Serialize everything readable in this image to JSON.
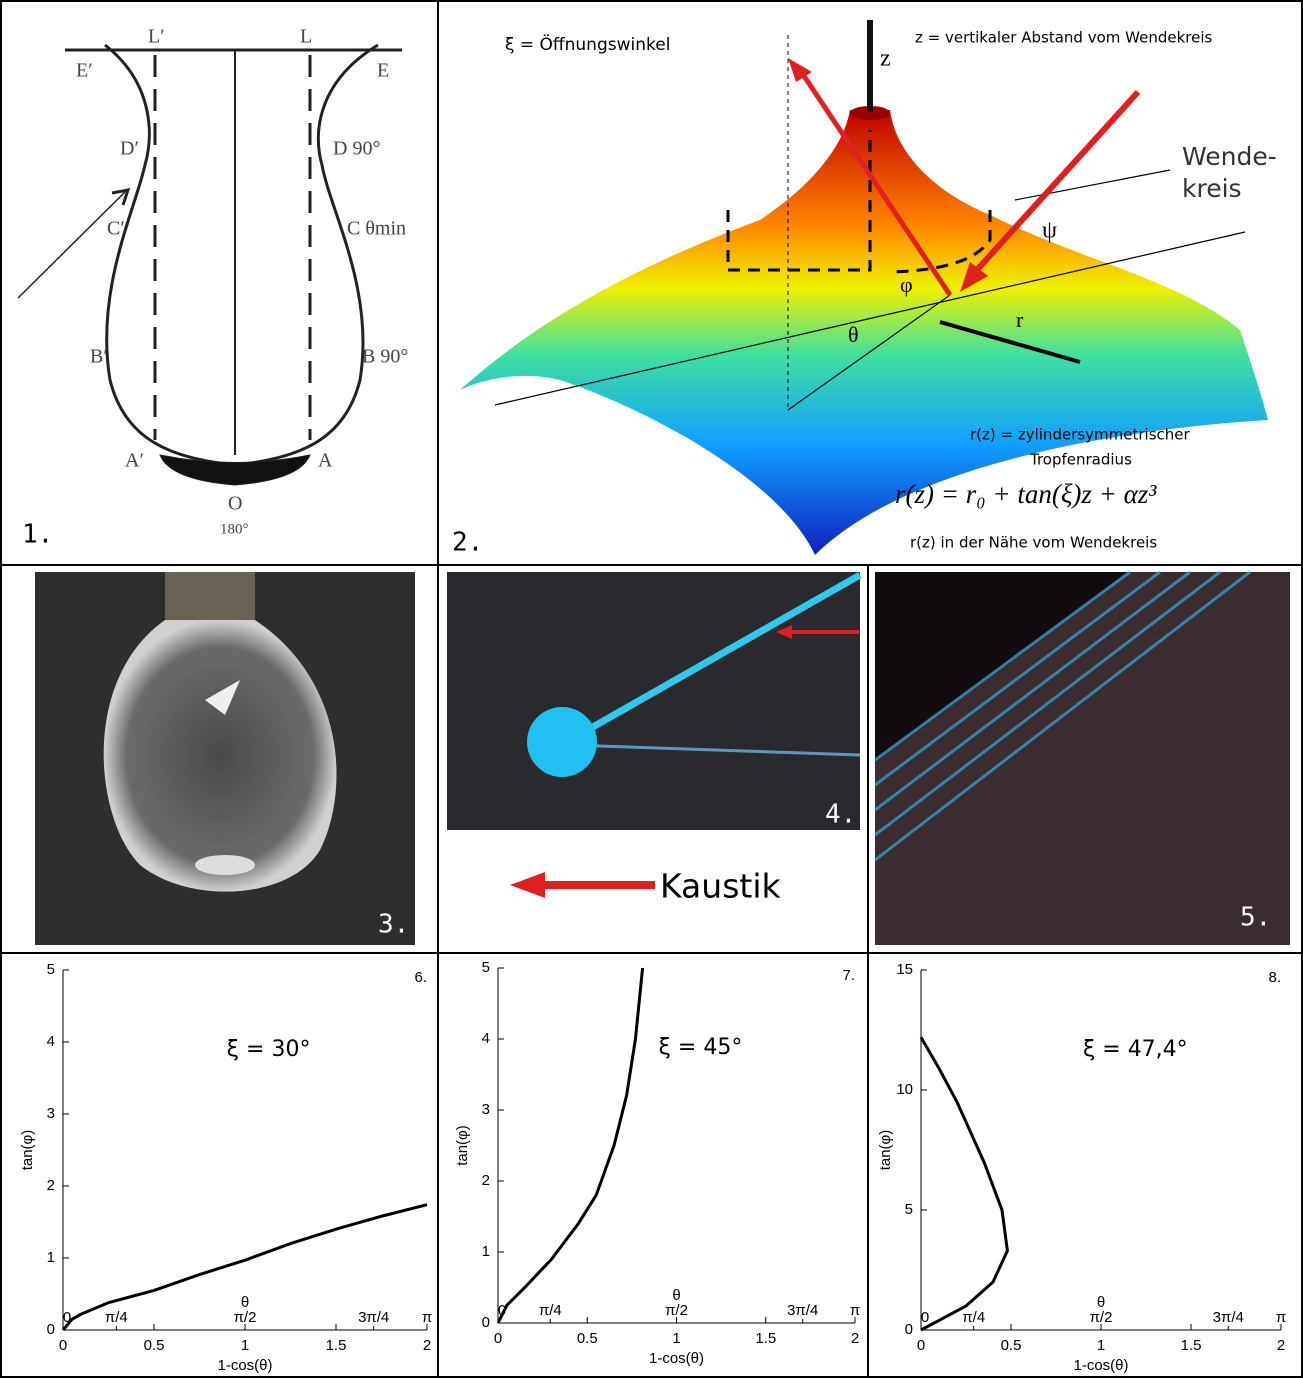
{
  "panels": {
    "p1": {
      "number": "1.",
      "labels": [
        "L′",
        "L",
        "E′",
        "E",
        "D′",
        "D 90°",
        "C′",
        "C θmin",
        "B′",
        "B 90°",
        "A′",
        "A",
        "O",
        "180°"
      ]
    },
    "p2": {
      "number": "2.",
      "xi_def": "ξ = Öffnungswinkel",
      "z_def": "z = vertikaler Abstand vom Wendekreis",
      "z": "z",
      "wende": "Wende-",
      "kreis": "kreis",
      "psi": "ψ",
      "phi": "φ",
      "theta": "θ",
      "r": "r",
      "rz_def": "r(z) = zylindersymmetrischer",
      "rz_def2": "Tropfenradius",
      "formula": "r(z) = r₀ + tan(ξ)z + αz³",
      "note": "r(z) in der Nähe vom Wendekreis"
    },
    "p3": {
      "number": "3."
    },
    "p4": {
      "number": "4.",
      "caption": "Kaustik"
    },
    "p5": {
      "number": "5."
    }
  },
  "chart_data": [
    {
      "type": "line",
      "title": "6.",
      "annotation": "ξ = 30°",
      "x_label": "1-cos(θ)",
      "y_label": "tan(φ)",
      "x2_label": "θ",
      "color": "#000000",
      "x": [
        0,
        0.05,
        0.1,
        0.25,
        0.5,
        0.75,
        1,
        1.25,
        1.5,
        1.75,
        2
      ],
      "values": [
        0,
        0.15,
        0.22,
        0.38,
        0.55,
        0.77,
        0.97,
        1.2,
        1.4,
        1.58,
        1.74
      ],
      "xlim": [
        0,
        2
      ],
      "ylim": [
        0,
        5
      ],
      "xticks": [
        0,
        0.5,
        1,
        1.5,
        2
      ],
      "yticks": [
        0,
        1,
        2,
        3,
        4,
        5
      ],
      "x2ticks": [
        0,
        {
          "value": 0.293,
          "label": "π/4"
        },
        {
          "value": 1,
          "label": "π/2"
        },
        {
          "value": 1.707,
          "label": "3π/4"
        },
        {
          "value": 2,
          "label": "π"
        }
      ]
    },
    {
      "type": "line",
      "title": "7.",
      "annotation": "ξ = 45°",
      "x_label": "1-cos(θ)",
      "y_label": "tan(φ)",
      "x2_label": "θ",
      "color": "#000000",
      "x": [
        0,
        0.05,
        0.15,
        0.3,
        0.45,
        0.55,
        0.65,
        0.72,
        0.77,
        0.81
      ],
      "values": [
        0,
        0.25,
        0.5,
        0.9,
        1.4,
        1.8,
        2.5,
        3.2,
        4,
        5
      ],
      "xlim": [
        0,
        2
      ],
      "ylim": [
        0,
        5
      ],
      "xticks": [
        0,
        0.5,
        1,
        1.5,
        2
      ],
      "yticks": [
        0,
        1,
        2,
        3,
        4,
        5
      ],
      "x2ticks": [
        0,
        {
          "value": 0.293,
          "label": "π/4"
        },
        {
          "value": 1,
          "label": "π/2"
        },
        {
          "value": 1.707,
          "label": "3π/4"
        },
        {
          "value": 2,
          "label": "π"
        }
      ]
    },
    {
      "type": "line",
      "title": "8.",
      "annotation": "ξ = 47,4°",
      "x_label": "1-cos(θ)",
      "y_label": "tan(φ)",
      "x2_label": "θ",
      "color": "#000000",
      "x": [
        0,
        0.1,
        0.25,
        0.4,
        0.48,
        0.45,
        0.35,
        0.2,
        0.1,
        0
      ],
      "values": [
        0,
        0.4,
        1,
        2,
        3.3,
        5,
        7,
        9.5,
        10.9,
        12.2
      ],
      "xlim": [
        0,
        2
      ],
      "ylim": [
        0,
        15
      ],
      "xticks": [
        0,
        0.5,
        1,
        1.5,
        2
      ],
      "yticks": [
        0,
        5,
        10,
        15
      ],
      "x2ticks": [
        0,
        {
          "value": 0.293,
          "label": "π/4"
        },
        {
          "value": 1,
          "label": "π/2"
        },
        {
          "value": 1.707,
          "label": "3π/4"
        },
        {
          "value": 2,
          "label": "π"
        }
      ]
    }
  ]
}
